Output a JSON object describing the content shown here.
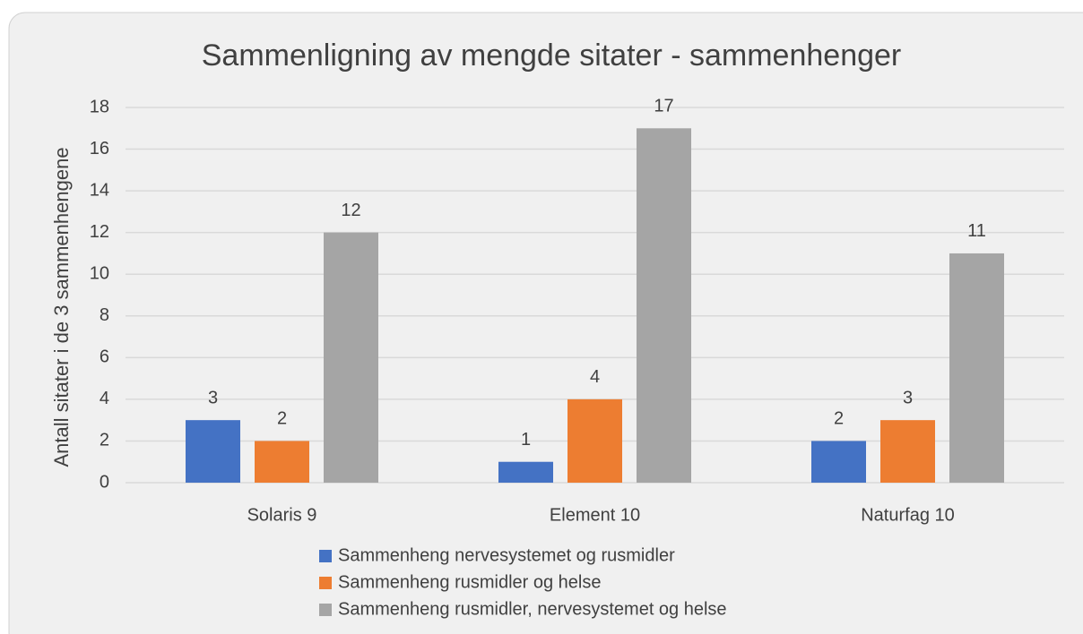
{
  "chart_data": {
    "type": "bar",
    "title": "Sammenligning av mengde sitater - sammenhenger",
    "y_label": "Antall sitater i de 3 sammenhengene",
    "categories": [
      "Solaris 9",
      "Element 10",
      "Naturfag 10"
    ],
    "series": [
      {
        "name": "Sammenheng nervesystemet og rusmidler",
        "color": "#4472c4",
        "values": [
          3,
          1,
          2
        ]
      },
      {
        "name": "Sammenheng rusmidler og helse",
        "color": "#ed7d31",
        "values": [
          2,
          4,
          3
        ]
      },
      {
        "name": "Sammenheng rusmidler, nervesystemet og helse",
        "color": "#a5a5a5",
        "values": [
          12,
          17,
          11
        ]
      }
    ],
    "ylim": [
      0,
      18
    ],
    "yticks": [
      0,
      2,
      4,
      6,
      8,
      10,
      12,
      14,
      16,
      18
    ],
    "grid": true,
    "legend": "bottom"
  }
}
